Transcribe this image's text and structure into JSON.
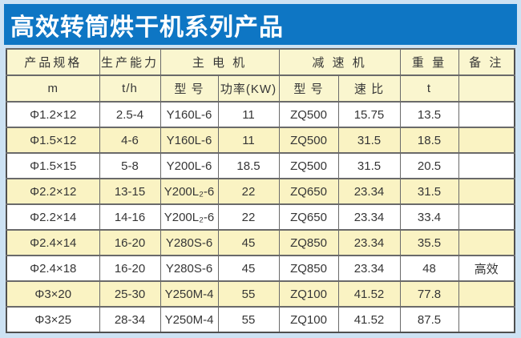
{
  "title": "高效转筒烘干机系列产品",
  "colors": {
    "title_bar": "#0E76C4",
    "frame": "#CDE2F3",
    "header_bg": "#FAF6CF",
    "alt_row_bg": "#FAF3C3",
    "border": "#6A6A6A"
  },
  "table": {
    "header_row1": [
      {
        "label": "产品规格",
        "span": 1
      },
      {
        "label": "生产能力",
        "span": 1
      },
      {
        "label": "主 电 机",
        "span": 2
      },
      {
        "label": "减 速 机",
        "span": 2
      },
      {
        "label": "重 量",
        "span": 1
      },
      {
        "label": "备 注",
        "span": 1
      }
    ],
    "header_row2": [
      "m",
      "t/h",
      "型 号",
      "功率(KW)",
      "型 号",
      "速 比",
      "t",
      ""
    ],
    "rows": [
      [
        "Φ1.2×12",
        "2.5-4",
        "Y160L-6",
        "11",
        "ZQ500",
        "15.75",
        "13.5",
        ""
      ],
      [
        "Φ1.5×12",
        "4-6",
        "Y160L-6",
        "11",
        "ZQ500",
        "31.5",
        "18.5",
        ""
      ],
      [
        "Φ1.5×15",
        "5-8",
        "Y200L-6",
        "18.5",
        "ZQ500",
        "31.5",
        "20.5",
        ""
      ],
      [
        "Φ2.2×12",
        "13-15",
        "Y200L₂-6",
        "22",
        "ZQ650",
        "23.34",
        "31.5",
        ""
      ],
      [
        "Φ2.2×14",
        "14-16",
        "Y200L₂-6",
        "22",
        "ZQ650",
        "23.34",
        "33.4",
        ""
      ],
      [
        "Φ2.4×14",
        "16-20",
        "Y280S-6",
        "45",
        "ZQ850",
        "23.34",
        "35.5",
        ""
      ],
      [
        "Φ2.4×18",
        "16-20",
        "Y280S-6",
        "45",
        "ZQ850",
        "23.34",
        "48",
        "高效"
      ],
      [
        "Φ3×20",
        "25-30",
        "Y250M-4",
        "55",
        "ZQ100",
        "41.52",
        "77.8",
        ""
      ],
      [
        "Φ3×25",
        "28-34",
        "Y250M-4",
        "55",
        "ZQ100",
        "41.52",
        "87.5",
        ""
      ]
    ]
  }
}
